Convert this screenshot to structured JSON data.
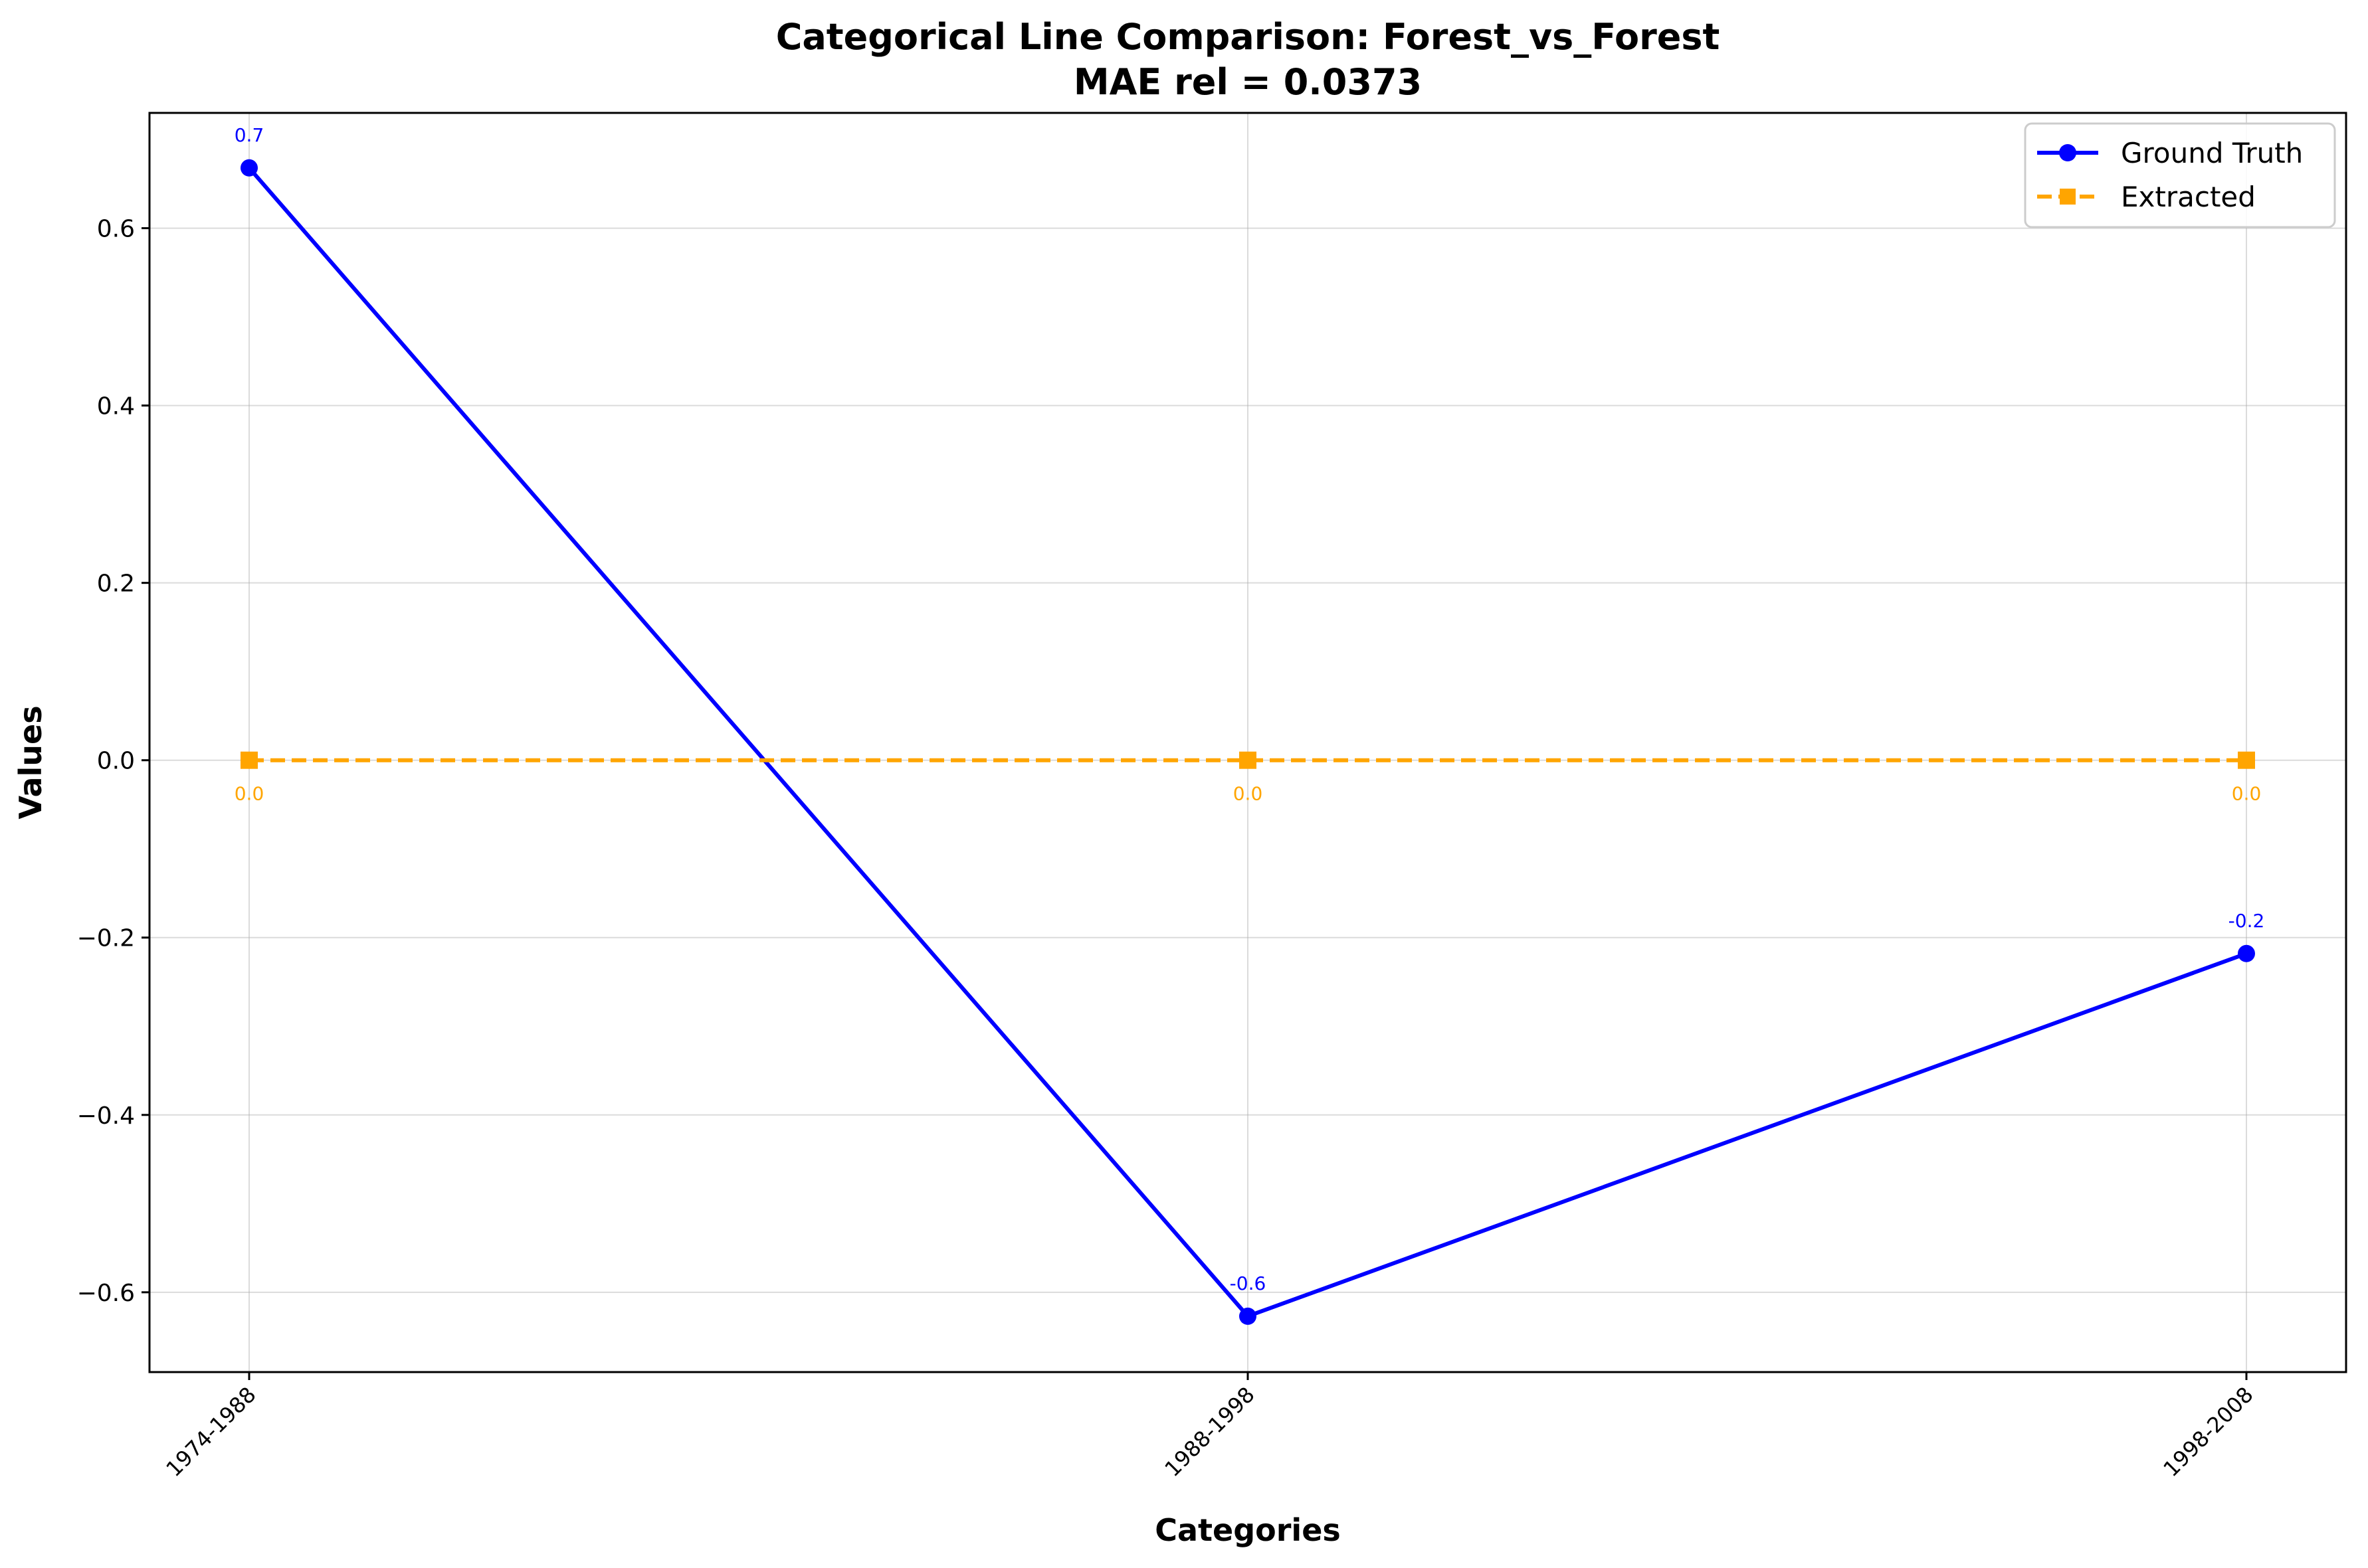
{
  "chart_data": {
    "type": "line",
    "title": "Categorical Line Comparison: Forest_vs_Forest",
    "subtitle": "MAE rel = 0.0373",
    "xlabel": "Categories",
    "ylabel": "Values",
    "categories": [
      "1974-1988",
      "1988-1998",
      "1998-2008"
    ],
    "ylim": [
      -0.69,
      0.73
    ],
    "yticks": [
      -0.6,
      -0.4,
      -0.2,
      0.0,
      0.2,
      0.4,
      0.6
    ],
    "ytick_labels": [
      "−0.6",
      "−0.4",
      "−0.2",
      "0.0",
      "0.2",
      "0.4",
      "0.6"
    ],
    "grid": true,
    "legend_position": "top-right",
    "series": [
      {
        "name": "Ground Truth",
        "color": "#0000ff",
        "marker": "circle",
        "line_style": "solid",
        "values": [
          0.668,
          -0.627,
          -0.218
        ],
        "labels": [
          "0.7",
          "-0.6",
          "-0.2"
        ],
        "label_position": "above"
      },
      {
        "name": "Extracted",
        "color": "#ffa500",
        "marker": "square",
        "line_style": "dashed",
        "values": [
          0.0,
          0.0,
          0.0
        ],
        "labels": [
          "0.0",
          "0.0",
          "0.0"
        ],
        "label_position": "below"
      }
    ]
  }
}
